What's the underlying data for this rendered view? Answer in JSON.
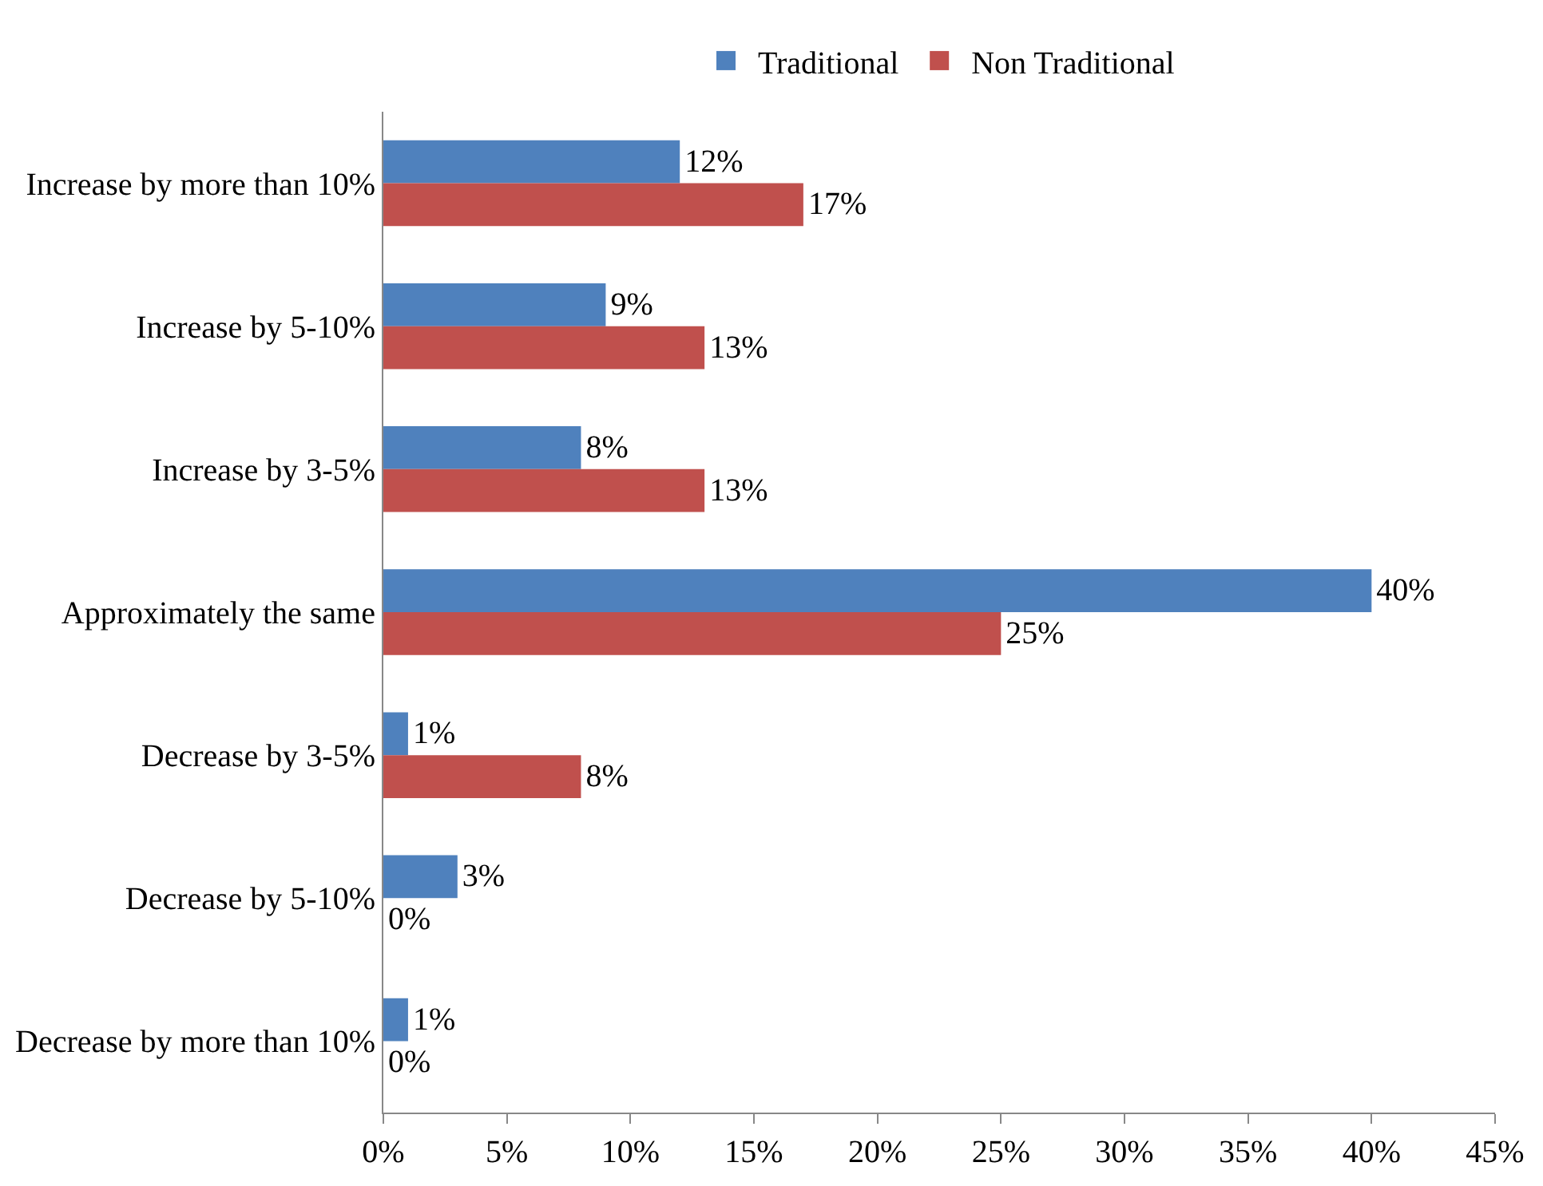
{
  "chart_data": {
    "type": "bar",
    "orientation": "horizontal",
    "categories": [
      "Increase by more than 10%",
      "Increase by 5-10%",
      "Increase by 3-5%",
      "Approximately the same",
      "Decrease by 3-5%",
      "Decrease by 5-10%",
      "Decrease by more than 10%"
    ],
    "series": [
      {
        "name": "Traditional",
        "color": "#4f81bd",
        "values": [
          12,
          9,
          8,
          40,
          1,
          3,
          1
        ],
        "value_labels": [
          "12%",
          "9%",
          "8%",
          "40%",
          "1%",
          "3%",
          "1%"
        ]
      },
      {
        "name": "Non Traditional",
        "color": "#c0504d",
        "values": [
          17,
          13,
          13,
          25,
          8,
          0,
          0
        ],
        "value_labels": [
          "17%",
          "13%",
          "13%",
          "25%",
          "8%",
          "0%",
          "0%"
        ]
      }
    ],
    "xlim": [
      0,
      45
    ],
    "xticks": [
      {
        "value": 0,
        "label": "0%"
      },
      {
        "value": 5,
        "label": "5%"
      },
      {
        "value": 10,
        "label": "10%"
      },
      {
        "value": 15,
        "label": "15%"
      },
      {
        "value": 20,
        "label": "20%"
      },
      {
        "value": 25,
        "label": "25%"
      },
      {
        "value": 30,
        "label": "30%"
      },
      {
        "value": 35,
        "label": "35%"
      },
      {
        "value": 40,
        "label": "40%"
      },
      {
        "value": 45,
        "label": "45%"
      }
    ],
    "grid": false,
    "legend": "top"
  }
}
